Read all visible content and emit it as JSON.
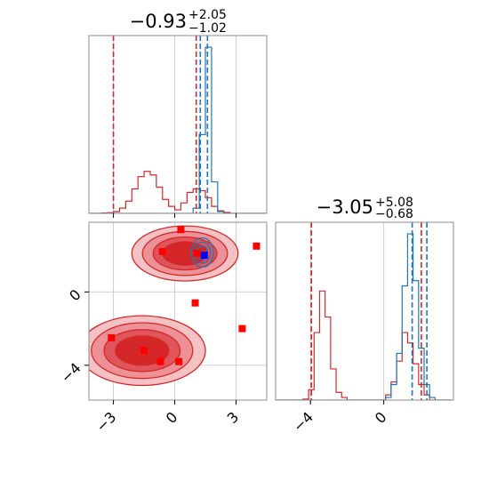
{
  "colors": {
    "blue": "#1f77b4",
    "red": "#d62728",
    "red_point": "#ff0000",
    "blue_point": "#0000ff"
  },
  "chart_data": [
    {
      "type": "histogram",
      "panel": "top-left",
      "title_value": "−0.93",
      "title_upper": "+2.05",
      "title_lower": "−1.02",
      "xlim": [
        -4.2,
        4.5
      ],
      "grid": true,
      "xticks": [
        -3,
        0,
        3
      ],
      "bins": [
        -4.2,
        -3.9,
        -3.6,
        -3.3,
        -3.0,
        -2.7,
        -2.4,
        -2.1,
        -1.8,
        -1.5,
        -1.2,
        -0.9,
        -0.6,
        -0.3,
        0.0,
        0.3,
        0.6,
        0.9,
        1.2,
        1.5,
        1.8,
        2.1,
        2.4,
        2.7,
        3.0,
        3.3,
        3.6,
        3.9,
        4.2,
        4.5
      ],
      "series": [
        {
          "color": "#d62728",
          "counts": [
            0,
            0,
            0.02,
            0.04,
            0.1,
            0.3,
            0.7,
            1.4,
            2.1,
            2.4,
            2.2,
            1.5,
            0.8,
            0.4,
            0.2,
            0.6,
            1.2,
            1.4,
            1.3,
            0.9,
            0.4,
            0.15,
            0.05,
            0,
            0,
            0,
            0,
            0,
            0
          ]
        },
        {
          "color": "#1f77b4",
          "counts": [
            0,
            0,
            0,
            0,
            0,
            0,
            0,
            0,
            0,
            0,
            0,
            0,
            0,
            0,
            0,
            0,
            0,
            0.3,
            4.5,
            9.5,
            1.8,
            0.1,
            0,
            0,
            0,
            0,
            0,
            0,
            0
          ]
        }
      ],
      "vlines": [
        {
          "color": "#d62728",
          "x": [
            -3.0,
            1.05
          ]
        },
        {
          "color": "#1f77b4",
          "x": [
            1.25,
            1.6
          ]
        }
      ]
    },
    {
      "type": "contour-scatter",
      "panel": "bottom-left",
      "xlim": [
        -4.2,
        4.5
      ],
      "ylim": [
        -5.9,
        3.8
      ],
      "grid": true,
      "xticks": [
        -3,
        0,
        3
      ],
      "yticks": [
        0,
        -4
      ],
      "red_regions": [
        {
          "cx": 0.5,
          "cy": 2.1,
          "rx": 2.6,
          "ry": 1.5
        },
        {
          "cx": -1.6,
          "cy": -3.2,
          "rx": 3.1,
          "ry": 1.9
        }
      ],
      "blue_region": {
        "cx": 1.35,
        "cy": 2.15,
        "rx": 0.55,
        "ry": 0.8
      },
      "points": [
        {
          "color": "#ff0000",
          "x": 0.3,
          "y": 3.4
        },
        {
          "color": "#ff0000",
          "x": -0.6,
          "y": 2.2
        },
        {
          "color": "#ff0000",
          "x": 1.1,
          "y": 2.1
        },
        {
          "color": "#ff0000",
          "x": 4.0,
          "y": 2.5
        },
        {
          "color": "#ff0000",
          "x": 1.0,
          "y": -0.6
        },
        {
          "color": "#ff0000",
          "x": 3.3,
          "y": -2.0
        },
        {
          "color": "#ff0000",
          "x": -3.1,
          "y": -2.5
        },
        {
          "color": "#ff0000",
          "x": -1.5,
          "y": -3.2
        },
        {
          "color": "#ff0000",
          "x": -0.7,
          "y": -3.8
        },
        {
          "color": "#ff0000",
          "x": 0.2,
          "y": -3.8
        },
        {
          "color": "#0000ff",
          "x": 1.45,
          "y": 2.0
        }
      ]
    },
    {
      "type": "histogram",
      "panel": "bottom-right",
      "title_value": "−3.05",
      "title_upper": "+5.08",
      "title_lower": "−0.68",
      "xlim": [
        -5.9,
        3.8
      ],
      "grid": true,
      "xticks": [
        -4,
        0
      ],
      "bins": [
        -5.9,
        -5.6,
        -5.3,
        -5.0,
        -4.7,
        -4.4,
        -4.1,
        -3.8,
        -3.5,
        -3.2,
        -2.9,
        -2.6,
        -2.3,
        -2.0,
        -1.7,
        -1.4,
        -1.1,
        -0.8,
        -0.5,
        -0.2,
        0.1,
        0.4,
        0.7,
        1.0,
        1.3,
        1.6,
        1.9,
        2.2,
        2.5,
        2.8,
        3.1,
        3.4,
        3.7
      ],
      "series": [
        {
          "color": "#d62728",
          "counts": [
            0,
            0,
            0,
            0,
            0,
            0.02,
            0.2,
            1.3,
            2.1,
            1.6,
            0.6,
            0.15,
            0.05,
            0,
            0,
            0,
            0,
            0,
            0,
            0,
            0.1,
            0.35,
            0.75,
            1.3,
            1.1,
            0.7,
            0.3,
            0.1,
            0,
            0,
            0,
            0
          ]
        },
        {
          "color": "#1f77b4",
          "counts": [
            0,
            0,
            0,
            0,
            0,
            0,
            0,
            0,
            0,
            0,
            0,
            0,
            0,
            0,
            0,
            0,
            0,
            0,
            0,
            0,
            0.05,
            0.3,
            0.9,
            2.2,
            3.2,
            2.3,
            1.0,
            0.3,
            0.05,
            0,
            0,
            0
          ]
        }
      ],
      "vlines": [
        {
          "color": "#d62728",
          "x": [
            -3.95,
            2.05
          ]
        },
        {
          "color": "#1f77b4",
          "x": [
            1.55,
            2.35
          ]
        }
      ]
    }
  ]
}
